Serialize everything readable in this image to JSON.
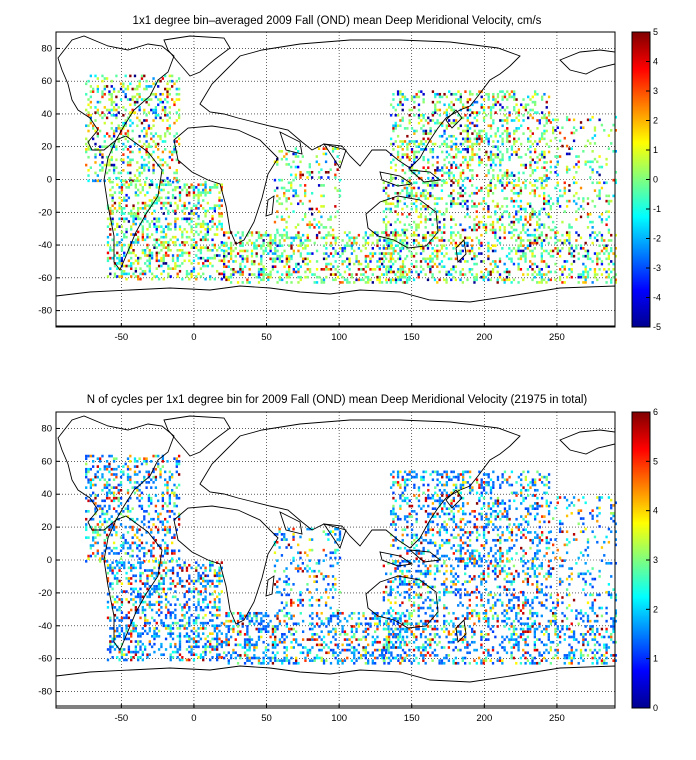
{
  "chart_data": [
    {
      "type": "heatmap",
      "title": "1x1 degree bin–averaged 2009 Fall (OND) mean Deep Meridional Velocity, cm/s",
      "xlim": [
        -95,
        290
      ],
      "ylim": [
        -90,
        90
      ],
      "x_ticks": [
        -50,
        0,
        50,
        100,
        150,
        200,
        250
      ],
      "y_ticks": [
        80,
        60,
        40,
        20,
        0,
        -20,
        -40,
        -60,
        -80
      ],
      "grid": true,
      "colormap": "jet",
      "colorbar": {
        "min": -5,
        "max": 5,
        "ticks": [
          5,
          4,
          3,
          2,
          1,
          0,
          -1,
          -2,
          -3,
          -4,
          -5
        ]
      }
    },
    {
      "type": "heatmap",
      "title": "N of cycles per 1x1 degree bin for 2009 Fall (OND) mean Deep Meridional Velocity (21975 in total)",
      "xlim": [
        -95,
        290
      ],
      "ylim": [
        -90,
        90
      ],
      "x_ticks": [
        -50,
        0,
        50,
        100,
        150,
        200,
        250
      ],
      "y_ticks": [
        80,
        60,
        40,
        20,
        0,
        -20,
        -40,
        -60,
        -80
      ],
      "grid": true,
      "colormap": "jet",
      "colorbar": {
        "min": 0,
        "max": 6,
        "ticks": [
          6,
          5,
          4,
          3,
          2,
          1,
          0
        ]
      }
    }
  ]
}
